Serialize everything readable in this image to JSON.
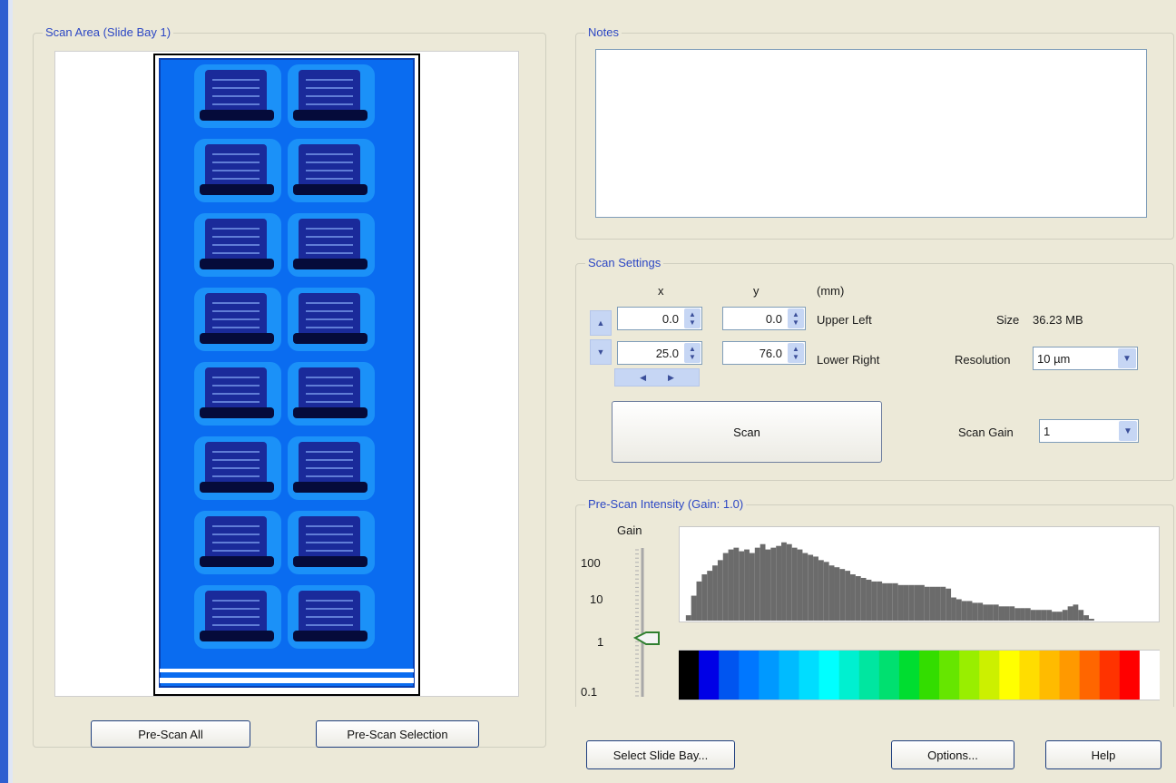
{
  "scan_area": {
    "title": "Scan Area  (Slide Bay  1)"
  },
  "buttons": {
    "prescan_all": "Pre-Scan All",
    "prescan_selection": "Pre-Scan Selection",
    "select_slide_bay": "Select Slide Bay...",
    "options": "Options...",
    "help": "Help",
    "scan": "Scan"
  },
  "notes": {
    "title": "Notes",
    "value": ""
  },
  "scan_settings": {
    "title": "Scan Settings",
    "x_header": "x",
    "y_header": "y",
    "unit": "(mm)",
    "upper_left": {
      "label": "Upper Left",
      "x": "0.0",
      "y": "0.0"
    },
    "lower_right": {
      "label": "Lower Right",
      "x": "25.0",
      "y": "76.0"
    },
    "size_label": "Size",
    "size_value": "36.23 MB",
    "resolution_label": "Resolution",
    "resolution_value": "10 µm",
    "gain_label": "Scan Gain",
    "gain_value": "1"
  },
  "prescan_intensity": {
    "title": "Pre-Scan Intensity (Gain: 1.0)",
    "gain_label": "Gain",
    "gain_ticks": [
      "100",
      "10",
      "1",
      "0.1"
    ],
    "gain_slider_value": 1,
    "histogram": [
      0,
      3,
      14,
      22,
      26,
      28,
      31,
      34,
      38,
      40,
      41,
      39,
      40,
      38,
      41,
      43,
      40,
      41,
      42,
      44,
      43,
      41,
      40,
      38,
      37,
      36,
      34,
      33,
      31,
      30,
      29,
      28,
      26,
      25,
      24,
      23,
      22,
      22,
      21,
      21,
      21,
      20,
      20,
      20,
      20,
      20,
      19,
      19,
      19,
      19,
      18,
      13,
      12,
      11,
      11,
      10,
      10,
      9,
      9,
      9,
      8,
      8,
      8,
      7,
      7,
      7,
      6,
      6,
      6,
      6,
      5,
      5,
      6,
      8,
      9,
      6,
      3,
      1,
      0,
      0,
      0,
      0,
      0,
      0,
      0,
      0,
      0,
      0,
      0,
      0
    ],
    "colorbar": [
      "#000000",
      "#0000e6",
      "#0055f0",
      "#0077ff",
      "#0099ff",
      "#00bbff",
      "#00ddff",
      "#00ffff",
      "#00f0d0",
      "#00e6a0",
      "#00e070",
      "#00dd30",
      "#33dd00",
      "#66e600",
      "#99ee00",
      "#ccf000",
      "#ffff00",
      "#ffdd00",
      "#ffbb00",
      "#ff9900",
      "#ff6600",
      "#ff3300",
      "#ff0000",
      "#ffffff"
    ]
  },
  "colors": {
    "accent_blue": "#2c47c4",
    "slide_background": "#0a6cf0",
    "spot_dark": "#1a2a9a"
  }
}
